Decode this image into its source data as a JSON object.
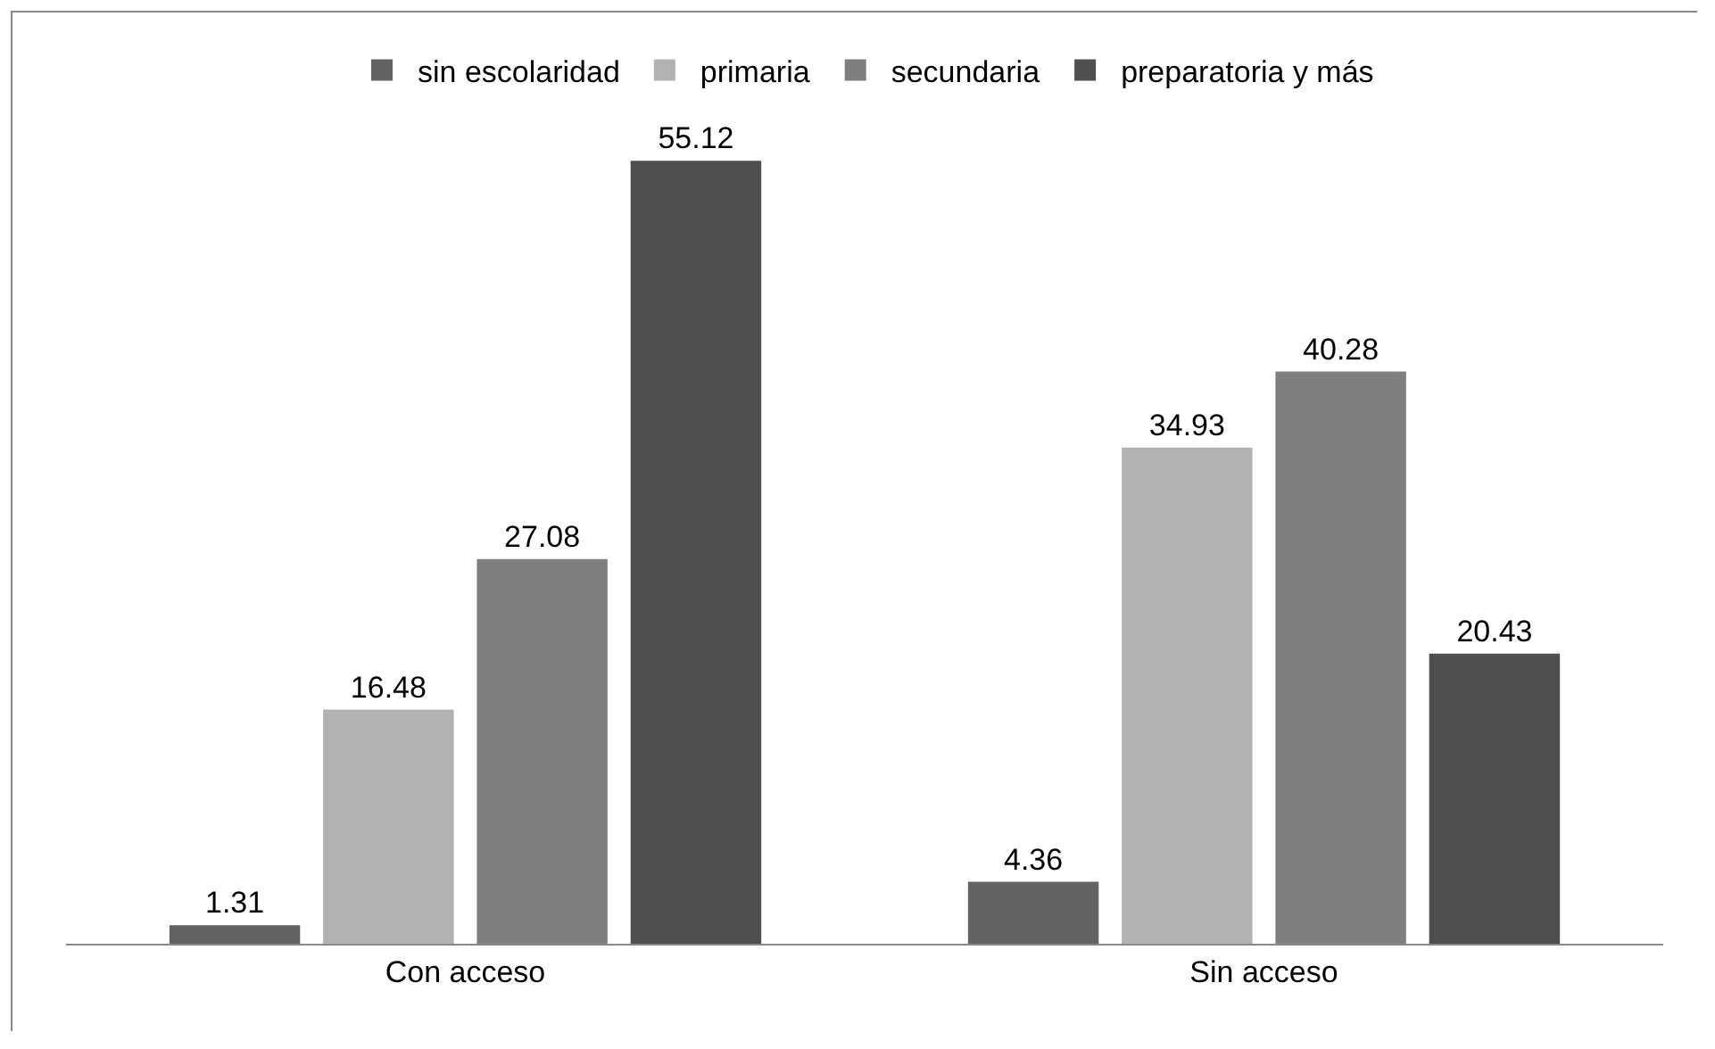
{
  "chart_data": {
    "type": "bar",
    "categories": [
      "Con acceso",
      "Sin acceso"
    ],
    "series": [
      {
        "name": "sin escolaridad",
        "color": "#636363",
        "values": [
          1.31,
          4.36
        ]
      },
      {
        "name": "primaria",
        "color": "#b2b2b2",
        "values": [
          16.48,
          34.93
        ]
      },
      {
        "name": "secundaria",
        "color": "#7f7f7f",
        "values": [
          27.08,
          40.28
        ]
      },
      {
        "name": "preparatoria y más",
        "color": "#4f4f4f",
        "values": [
          55.12,
          20.43
        ]
      }
    ],
    "data_labels": true,
    "legend": "top",
    "grid": false,
    "tick_labels": "x"
  }
}
